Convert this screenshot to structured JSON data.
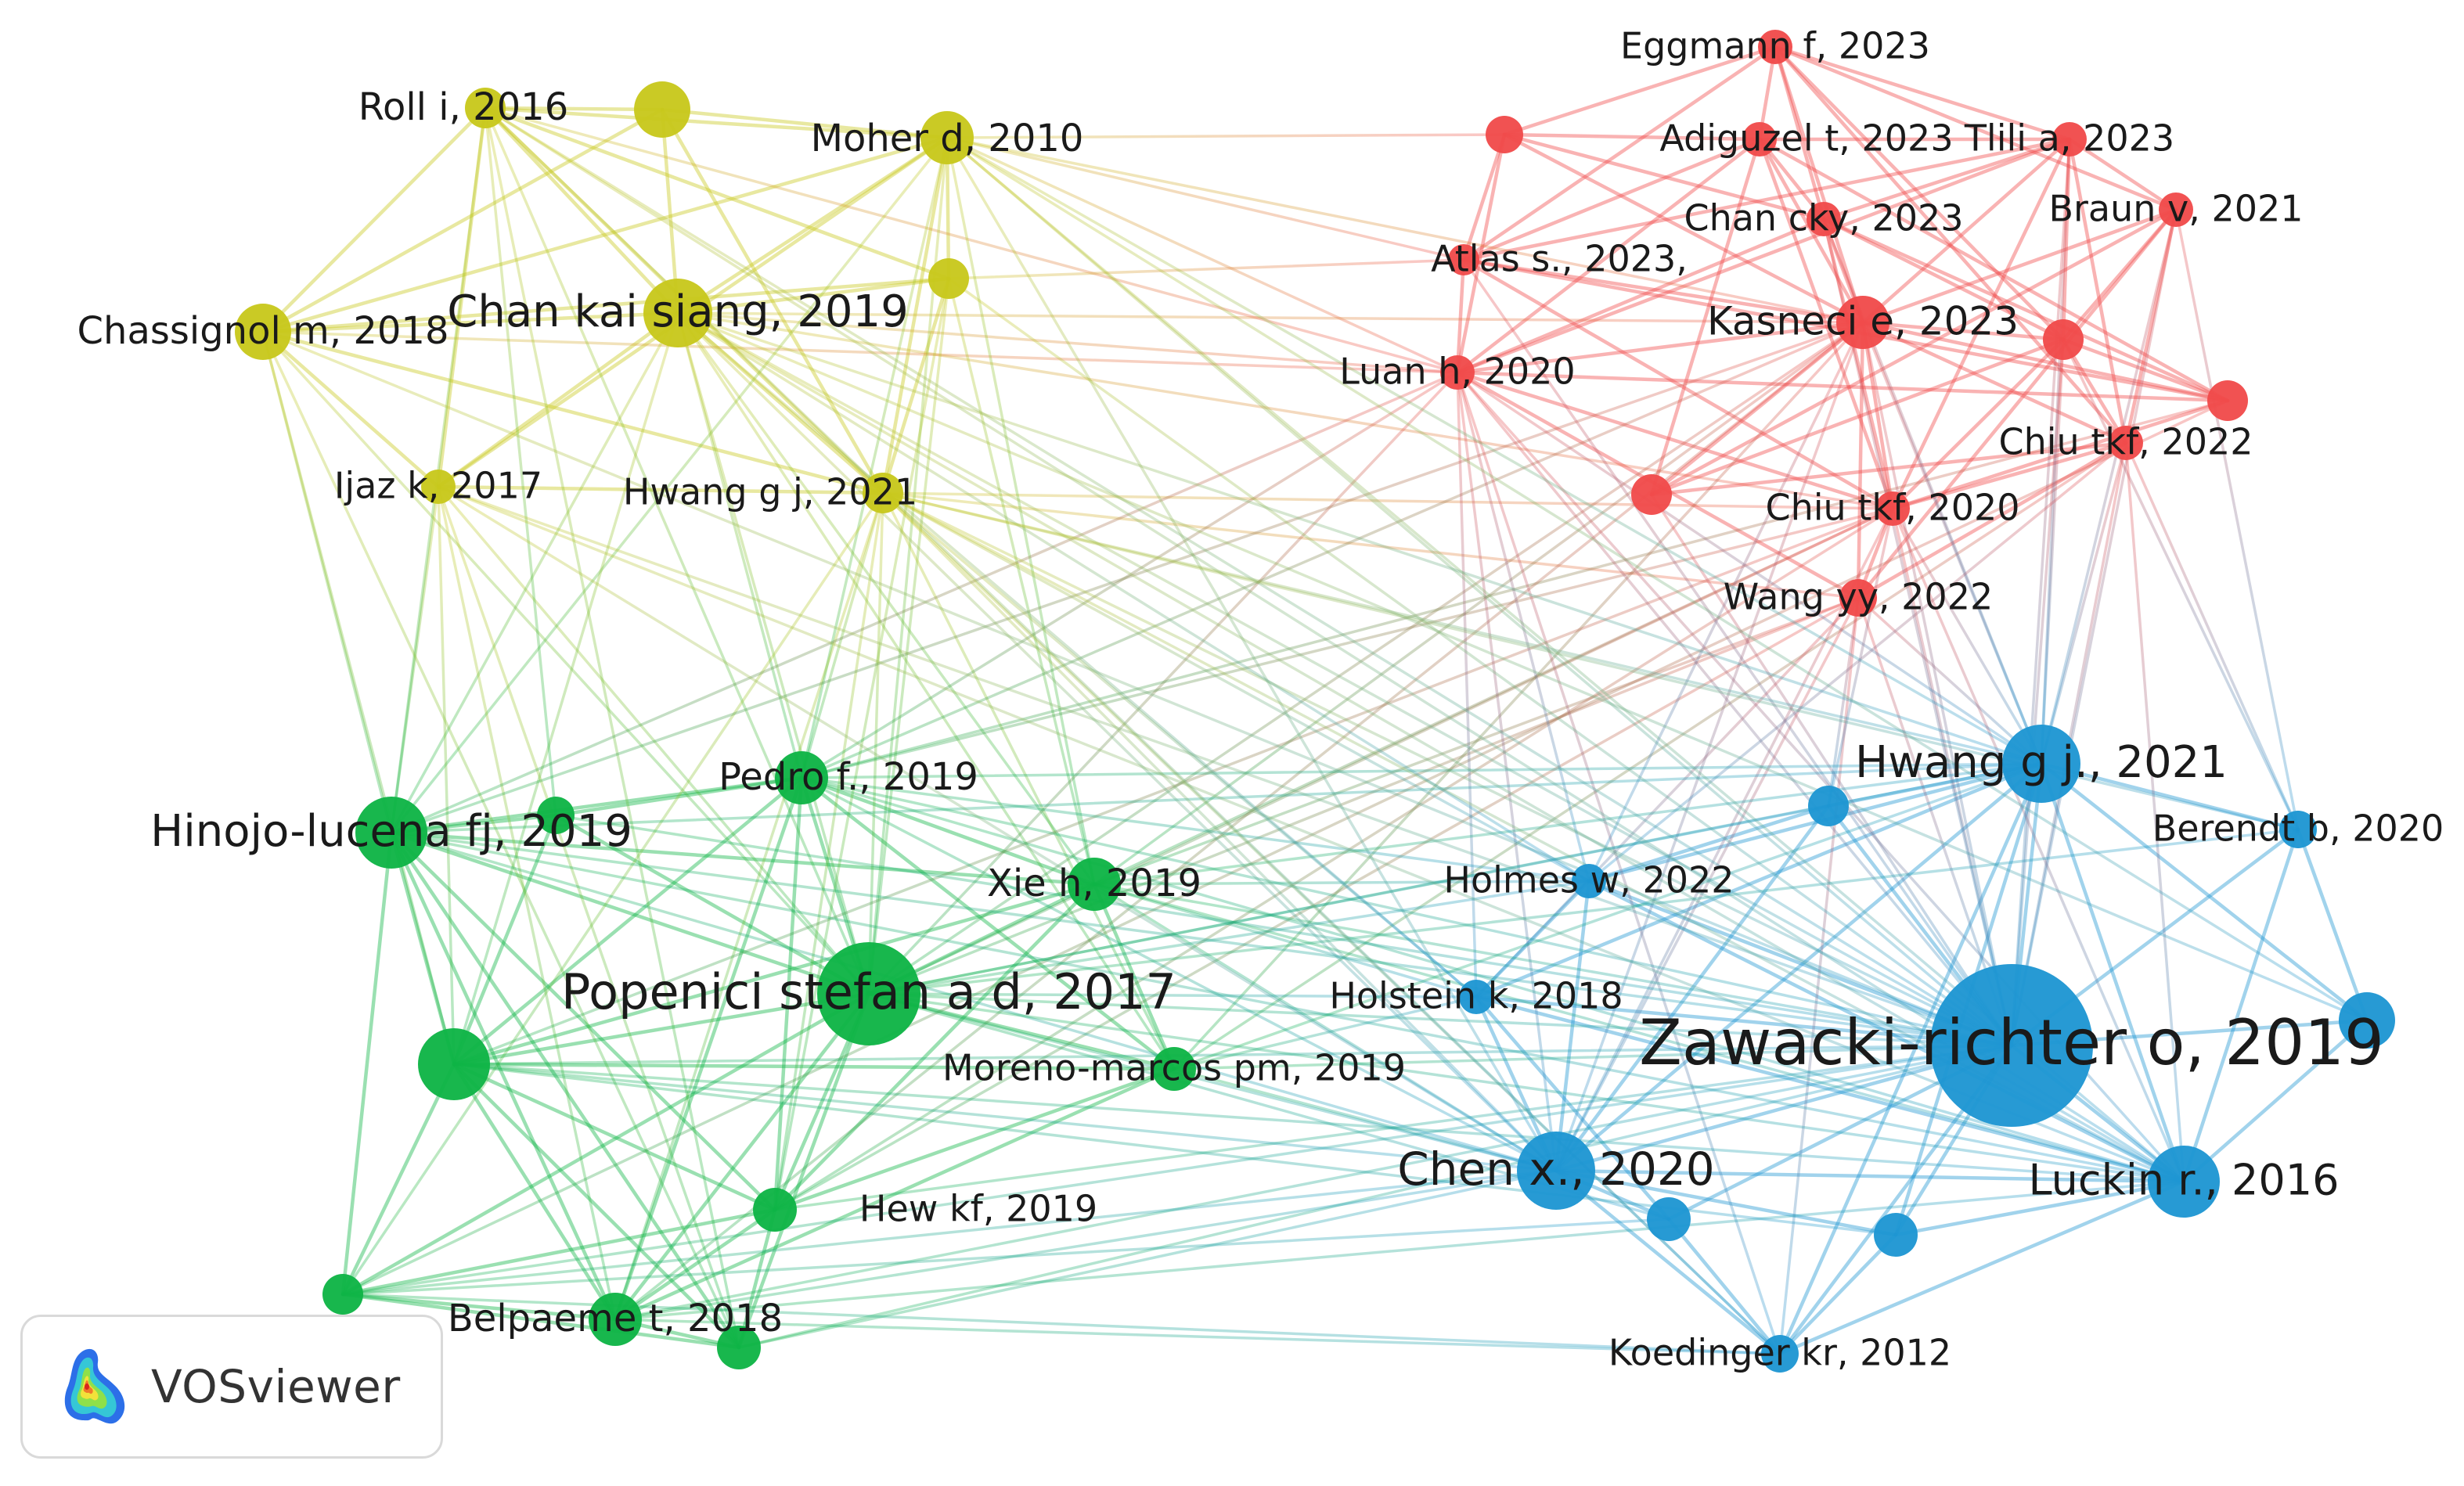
{
  "clusters": [
    {
      "id": "red",
      "color": "#f04b4b"
    },
    {
      "id": "yellow",
      "color": "#c8c81c"
    },
    {
      "id": "green",
      "color": "#0fb446"
    },
    {
      "id": "blue",
      "color": "#1e96d2"
    }
  ],
  "nodes": [
    {
      "id": "eggmann",
      "label": "Eggmann f, 2023",
      "cluster": "red"
    },
    {
      "id": "adiguzel",
      "label": "Adiguzel t, 2023",
      "cluster": "red"
    },
    {
      "id": "tlili",
      "label": "Tlili a, 2023",
      "cluster": "red"
    },
    {
      "id": "red_u1",
      "label": "",
      "cluster": "red"
    },
    {
      "id": "chancky",
      "label": "Chan cky, 2023",
      "cluster": "red"
    },
    {
      "id": "braun",
      "label": "Braun v, 2021",
      "cluster": "red"
    },
    {
      "id": "atlas",
      "label": "Atlas s., 2023,",
      "cluster": "red"
    },
    {
      "id": "kasneci",
      "label": "Kasneci e, 2023",
      "cluster": "red"
    },
    {
      "id": "red_u2",
      "label": "",
      "cluster": "red"
    },
    {
      "id": "luan",
      "label": "Luan h, 2020",
      "cluster": "red"
    },
    {
      "id": "red_u3",
      "label": "",
      "cluster": "red"
    },
    {
      "id": "chiu2022",
      "label": "Chiu tkf, 2022",
      "cluster": "red"
    },
    {
      "id": "red_u4",
      "label": "",
      "cluster": "red"
    },
    {
      "id": "chiu2020",
      "label": "Chiu tkf, 2020",
      "cluster": "red"
    },
    {
      "id": "wangyy",
      "label": "Wang yy, 2022",
      "cluster": "red"
    },
    {
      "id": "roll",
      "label": "Roll i, 2016",
      "cluster": "yellow"
    },
    {
      "id": "yel_u1",
      "label": "",
      "cluster": "yellow"
    },
    {
      "id": "moher",
      "label": "Moher d, 2010",
      "cluster": "yellow"
    },
    {
      "id": "yel_u2",
      "label": "",
      "cluster": "yellow"
    },
    {
      "id": "chankai",
      "label": "Chan kai siang, 2019",
      "cluster": "yellow"
    },
    {
      "id": "chassignol",
      "label": "Chassignol m, 2018",
      "cluster": "yellow"
    },
    {
      "id": "ijaz",
      "label": "Ijaz k, 2017",
      "cluster": "yellow"
    },
    {
      "id": "hwang_y",
      "label": "Hwang g j, 2021",
      "cluster": "yellow"
    },
    {
      "id": "pedro",
      "label": "Pedro f., 2019",
      "cluster": "green"
    },
    {
      "id": "hinojo",
      "label": "Hinojo-lucena fj, 2019",
      "cluster": "green"
    },
    {
      "id": "grn_u1",
      "label": "",
      "cluster": "green"
    },
    {
      "id": "xie",
      "label": "Xie h, 2019",
      "cluster": "green"
    },
    {
      "id": "popenici",
      "label": "Popenici stefan a d, 2017",
      "cluster": "green"
    },
    {
      "id": "grn_u2",
      "label": "",
      "cluster": "green"
    },
    {
      "id": "moreno",
      "label": "Moreno-marcos pm, 2019",
      "cluster": "green"
    },
    {
      "id": "hew",
      "label": "Hew kf, 2019",
      "cluster": "green"
    },
    {
      "id": "grn_u3",
      "label": "",
      "cluster": "green"
    },
    {
      "id": "belpaeme",
      "label": "Belpaeme t, 2018",
      "cluster": "green"
    },
    {
      "id": "grn_u4",
      "label": "",
      "cluster": "green"
    },
    {
      "id": "hwang_b",
      "label": "Hwang g j., 2021",
      "cluster": "blue"
    },
    {
      "id": "blu_u1",
      "label": "",
      "cluster": "blue"
    },
    {
      "id": "berendt",
      "label": "Berendt b, 2020",
      "cluster": "blue"
    },
    {
      "id": "holmes",
      "label": "Holmes w, 2022",
      "cluster": "blue"
    },
    {
      "id": "holstein",
      "label": "Holstein k, 2018",
      "cluster": "blue"
    },
    {
      "id": "blu_u2",
      "label": "",
      "cluster": "blue"
    },
    {
      "id": "zawacki",
      "label": "Zawacki-richter o, 2019",
      "cluster": "blue"
    },
    {
      "id": "chenx",
      "label": "Chen x., 2020",
      "cluster": "blue"
    },
    {
      "id": "blu_u3",
      "label": "",
      "cluster": "blue"
    },
    {
      "id": "blu_u4",
      "label": "",
      "cluster": "blue"
    },
    {
      "id": "luckin",
      "label": "Luckin r., 2016",
      "cluster": "blue"
    },
    {
      "id": "koedinger",
      "label": "Koedinger kr, 2012",
      "cluster": "blue"
    }
  ],
  "links": [
    [
      "eggmann",
      "adiguzel"
    ],
    [
      "eggmann",
      "tlili"
    ],
    [
      "eggmann",
      "chancky"
    ],
    [
      "eggmann",
      "kasneci"
    ],
    [
      "eggmann",
      "red_u1"
    ],
    [
      "eggmann",
      "atlas"
    ],
    [
      "eggmann",
      "braun"
    ],
    [
      "eggmann",
      "red_u2"
    ],
    [
      "eggmann",
      "chiu2022"
    ],
    [
      "adiguzel",
      "tlili"
    ],
    [
      "adiguzel",
      "red_u1"
    ],
    [
      "adiguzel",
      "chancky"
    ],
    [
      "adiguzel",
      "kasneci"
    ],
    [
      "adiguzel",
      "atlas"
    ],
    [
      "adiguzel",
      "luan"
    ],
    [
      "adiguzel",
      "chiu2020"
    ],
    [
      "adiguzel",
      "red_u3"
    ],
    [
      "adiguzel",
      "red_u4"
    ],
    [
      "tlili",
      "chancky"
    ],
    [
      "tlili",
      "kasneci"
    ],
    [
      "tlili",
      "braun"
    ],
    [
      "tlili",
      "red_u2"
    ],
    [
      "tlili",
      "chiu2022"
    ],
    [
      "tlili",
      "atlas"
    ],
    [
      "tlili",
      "luan"
    ],
    [
      "tlili",
      "chiu2020"
    ],
    [
      "red_u1",
      "kasneci"
    ],
    [
      "red_u1",
      "atlas"
    ],
    [
      "red_u1",
      "luan"
    ],
    [
      "red_u1",
      "chancky"
    ],
    [
      "chancky",
      "kasneci"
    ],
    [
      "chancky",
      "luan"
    ],
    [
      "chancky",
      "red_u3"
    ],
    [
      "chancky",
      "chiu2020"
    ],
    [
      "chancky",
      "red_u2"
    ],
    [
      "braun",
      "kasneci"
    ],
    [
      "braun",
      "red_u2"
    ],
    [
      "braun",
      "chiu2022"
    ],
    [
      "braun",
      "wangyy"
    ],
    [
      "braun",
      "red_u4"
    ],
    [
      "atlas",
      "kasneci"
    ],
    [
      "atlas",
      "luan"
    ],
    [
      "atlas",
      "red_u3"
    ],
    [
      "atlas",
      "chiu2020"
    ],
    [
      "kasneci",
      "red_u2"
    ],
    [
      "kasneci",
      "luan"
    ],
    [
      "kasneci",
      "chiu2022"
    ],
    [
      "kasneci",
      "chiu2020"
    ],
    [
      "kasneci",
      "red_u3"
    ],
    [
      "kasneci",
      "wangyy"
    ],
    [
      "kasneci",
      "red_u4"
    ],
    [
      "red_u2",
      "chiu2022"
    ],
    [
      "red_u2",
      "red_u4"
    ],
    [
      "red_u2",
      "chiu2020"
    ],
    [
      "red_u2",
      "red_u3"
    ],
    [
      "chiu2022",
      "red_u4"
    ],
    [
      "chiu2022",
      "chiu2020"
    ],
    [
      "chiu2022",
      "wangyy"
    ],
    [
      "luan",
      "red_u3"
    ],
    [
      "luan",
      "chiu2020"
    ],
    [
      "luan",
      "wangyy"
    ],
    [
      "chiu2020",
      "wangyy"
    ],
    [
      "chiu2020",
      "red_u3"
    ],
    [
      "roll",
      "yel_u1"
    ],
    [
      "roll",
      "moher"
    ],
    [
      "roll",
      "chankai"
    ],
    [
      "roll",
      "chassignol"
    ],
    [
      "roll",
      "ijaz"
    ],
    [
      "roll",
      "hwang_y"
    ],
    [
      "roll",
      "yel_u2"
    ],
    [
      "yel_u1",
      "chankai"
    ],
    [
      "yel_u1",
      "moher"
    ],
    [
      "yel_u1",
      "chassignol"
    ],
    [
      "yel_u1",
      "hwang_y"
    ],
    [
      "moher",
      "chankai"
    ],
    [
      "moher",
      "yel_u2"
    ],
    [
      "moher",
      "chassignol"
    ],
    [
      "moher",
      "hwang_y"
    ],
    [
      "moher",
      "ijaz"
    ],
    [
      "chankai",
      "chassignol"
    ],
    [
      "chankai",
      "yel_u2"
    ],
    [
      "chankai",
      "ijaz"
    ],
    [
      "chankai",
      "hwang_y"
    ],
    [
      "chassignol",
      "ijaz"
    ],
    [
      "chassignol",
      "hwang_y"
    ],
    [
      "chassignol",
      "yel_u2"
    ],
    [
      "ijaz",
      "hwang_y"
    ],
    [
      "yel_u2",
      "hwang_y"
    ],
    [
      "pedro",
      "hinojo"
    ],
    [
      "pedro",
      "grn_u1"
    ],
    [
      "pedro",
      "popenici"
    ],
    [
      "pedro",
      "xie"
    ],
    [
      "pedro",
      "grn_u2"
    ],
    [
      "pedro",
      "hew"
    ],
    [
      "pedro",
      "belpaeme"
    ],
    [
      "pedro",
      "moreno"
    ],
    [
      "hinojo",
      "grn_u1"
    ],
    [
      "hinojo",
      "grn_u2"
    ],
    [
      "hinojo",
      "popenici"
    ],
    [
      "hinojo",
      "grn_u4"
    ],
    [
      "hinojo",
      "belpaeme"
    ],
    [
      "hinojo",
      "hew"
    ],
    [
      "hinojo",
      "grn_u3"
    ],
    [
      "hinojo",
      "xie"
    ],
    [
      "grn_u1",
      "popenici"
    ],
    [
      "grn_u1",
      "grn_u2"
    ],
    [
      "xie",
      "popenici"
    ],
    [
      "xie",
      "moreno"
    ],
    [
      "xie",
      "hew"
    ],
    [
      "xie",
      "grn_u2"
    ],
    [
      "popenici",
      "grn_u2"
    ],
    [
      "popenici",
      "moreno"
    ],
    [
      "popenici",
      "hew"
    ],
    [
      "popenici",
      "belpaeme"
    ],
    [
      "popenici",
      "grn_u3"
    ],
    [
      "popenici",
      "grn_u4"
    ],
    [
      "grn_u2",
      "moreno"
    ],
    [
      "grn_u2",
      "hew"
    ],
    [
      "grn_u2",
      "grn_u4"
    ],
    [
      "grn_u2",
      "belpaeme"
    ],
    [
      "grn_u2",
      "grn_u3"
    ],
    [
      "moreno",
      "hew"
    ],
    [
      "moreno",
      "belpaeme"
    ],
    [
      "hew",
      "belpaeme"
    ],
    [
      "hew",
      "grn_u3"
    ],
    [
      "grn_u3",
      "belpaeme"
    ],
    [
      "grn_u4",
      "belpaeme"
    ],
    [
      "grn_u4",
      "grn_u3"
    ],
    [
      "grn_u4",
      "hew"
    ],
    [
      "hwang_b",
      "blu_u1"
    ],
    [
      "hwang_b",
      "berendt"
    ],
    [
      "hwang_b",
      "zawacki"
    ],
    [
      "hwang_b",
      "holmes"
    ],
    [
      "hwang_b",
      "luckin"
    ],
    [
      "hwang_b",
      "chenx"
    ],
    [
      "hwang_b",
      "blu_u4"
    ],
    [
      "hwang_b",
      "blu_u2"
    ],
    [
      "hwang_b",
      "koedinger"
    ],
    [
      "hwang_b",
      "holstein"
    ],
    [
      "blu_u1",
      "zawacki"
    ],
    [
      "blu_u1",
      "holmes"
    ],
    [
      "blu_u1",
      "chenx"
    ],
    [
      "berendt",
      "zawacki"
    ],
    [
      "berendt",
      "blu_u2"
    ],
    [
      "berendt",
      "luckin"
    ],
    [
      "holmes",
      "zawacki"
    ],
    [
      "holmes",
      "holstein"
    ],
    [
      "holmes",
      "chenx"
    ],
    [
      "holmes",
      "luckin"
    ],
    [
      "holstein",
      "zawacki"
    ],
    [
      "holstein",
      "chenx"
    ],
    [
      "holstein",
      "blu_u3"
    ],
    [
      "holstein",
      "luckin"
    ],
    [
      "blu_u2",
      "zawacki"
    ],
    [
      "blu_u2",
      "luckin"
    ],
    [
      "zawacki",
      "chenx"
    ],
    [
      "zawacki",
      "luckin"
    ],
    [
      "zawacki",
      "blu_u3"
    ],
    [
      "zawacki",
      "blu_u4"
    ],
    [
      "zawacki",
      "koedinger"
    ],
    [
      "chenx",
      "blu_u3"
    ],
    [
      "chenx",
      "blu_u4"
    ],
    [
      "chenx",
      "koedinger"
    ],
    [
      "chenx",
      "luckin"
    ],
    [
      "blu_u3",
      "koedinger"
    ],
    [
      "blu_u4",
      "koedinger"
    ],
    [
      "blu_u4",
      "luckin"
    ],
    [
      "luckin",
      "koedinger"
    ],
    [
      "moher",
      "kasneci"
    ],
    [
      "moher",
      "luan"
    ],
    [
      "moher",
      "atlas"
    ],
    [
      "moher",
      "red_u1"
    ],
    [
      "chankai",
      "luan"
    ],
    [
      "chankai",
      "chiu2020"
    ],
    [
      "chankai",
      "kasneci"
    ],
    [
      "roll",
      "luan"
    ],
    [
      "yel_u2",
      "atlas"
    ],
    [
      "hwang_y",
      "chiu2020"
    ],
    [
      "hwang_y",
      "wangyy"
    ],
    [
      "chassignol",
      "luan"
    ],
    [
      "popenici",
      "moher"
    ],
    [
      "popenici",
      "chankai"
    ],
    [
      "popenici",
      "roll"
    ],
    [
      "popenici",
      "chassignol"
    ],
    [
      "popenici",
      "ijaz"
    ],
    [
      "popenici",
      "hwang_y"
    ],
    [
      "popenici",
      "yel_u2"
    ],
    [
      "hinojo",
      "chassignol"
    ],
    [
      "hinojo",
      "chankai"
    ],
    [
      "hinojo",
      "ijaz"
    ],
    [
      "hinojo",
      "moher"
    ],
    [
      "hinojo",
      "roll"
    ],
    [
      "pedro",
      "moher"
    ],
    [
      "pedro",
      "chankai"
    ],
    [
      "pedro",
      "hwang_y"
    ],
    [
      "xie",
      "moher"
    ],
    [
      "xie",
      "chankai"
    ],
    [
      "xie",
      "yel_u2"
    ],
    [
      "grn_u2",
      "chassignol"
    ],
    [
      "grn_u2",
      "ijaz"
    ],
    [
      "grn_u2",
      "chankai"
    ],
    [
      "grn_u4",
      "ijaz"
    ],
    [
      "grn_u4",
      "chassignol"
    ],
    [
      "grn_u4",
      "roll"
    ],
    [
      "belpaeme",
      "ijaz"
    ],
    [
      "belpaeme",
      "hwang_y"
    ],
    [
      "hew",
      "hwang_y"
    ],
    [
      "hew",
      "yel_u2"
    ],
    [
      "moreno",
      "chankai"
    ],
    [
      "moreno",
      "hwang_y"
    ],
    [
      "grn_u3",
      "hwang_y"
    ],
    [
      "grn_u1",
      "roll"
    ],
    [
      "popenici",
      "luan"
    ],
    [
      "popenici",
      "kasneci"
    ],
    [
      "popenici",
      "chiu2020"
    ],
    [
      "popenici",
      "wangyy"
    ],
    [
      "pedro",
      "luan"
    ],
    [
      "pedro",
      "kasneci"
    ],
    [
      "pedro",
      "chiu2020"
    ],
    [
      "pedro",
      "red_u3"
    ],
    [
      "xie",
      "kasneci"
    ],
    [
      "xie",
      "chiu2020"
    ],
    [
      "xie",
      "wangyy"
    ],
    [
      "hinojo",
      "luan"
    ],
    [
      "hinojo",
      "kasneci"
    ],
    [
      "moreno",
      "kasneci"
    ],
    [
      "moreno",
      "chiu2022"
    ],
    [
      "hew",
      "chiu2020"
    ],
    [
      "hew",
      "wangyy"
    ],
    [
      "grn_u2",
      "chiu2020"
    ],
    [
      "belpaeme",
      "kasneci"
    ],
    [
      "grn_u3",
      "red_u3"
    ],
    [
      "zawacki",
      "kasneci"
    ],
    [
      "zawacki",
      "luan"
    ],
    [
      "zawacki",
      "chiu2020"
    ],
    [
      "zawacki",
      "chiu2022"
    ],
    [
      "zawacki",
      "wangyy"
    ],
    [
      "zawacki",
      "tlili"
    ],
    [
      "zawacki",
      "braun"
    ],
    [
      "zawacki",
      "red_u2"
    ],
    [
      "zawacki",
      "red_u4"
    ],
    [
      "zawacki",
      "chancky"
    ],
    [
      "zawacki",
      "atlas"
    ],
    [
      "hwang_b",
      "kasneci"
    ],
    [
      "hwang_b",
      "luan"
    ],
    [
      "hwang_b",
      "chiu2020"
    ],
    [
      "hwang_b",
      "chiu2022"
    ],
    [
      "hwang_b",
      "wangyy"
    ],
    [
      "hwang_b",
      "tlili"
    ],
    [
      "hwang_b",
      "braun"
    ],
    [
      "hwang_b",
      "red_u2"
    ],
    [
      "hwang_b",
      "chancky"
    ],
    [
      "chenx",
      "luan"
    ],
    [
      "chenx",
      "kasneci"
    ],
    [
      "chenx",
      "chiu2020"
    ],
    [
      "chenx",
      "wangyy"
    ],
    [
      "holmes",
      "luan"
    ],
    [
      "holmes",
      "chiu2022"
    ],
    [
      "holmes",
      "kasneci"
    ],
    [
      "berendt",
      "chiu2022"
    ],
    [
      "berendt",
      "braun"
    ],
    [
      "berendt",
      "red_u2"
    ],
    [
      "luckin",
      "chiu2022"
    ],
    [
      "luckin",
      "chiu2020"
    ],
    [
      "luckin",
      "luan"
    ],
    [
      "holstein",
      "luan"
    ],
    [
      "holstein",
      "wangyy"
    ],
    [
      "koedinger",
      "luan"
    ],
    [
      "koedinger",
      "wangyy"
    ],
    [
      "blu_u1",
      "chiu2020"
    ],
    [
      "blu_u1",
      "wangyy"
    ],
    [
      "zawacki",
      "popenici"
    ],
    [
      "zawacki",
      "hinojo"
    ],
    [
      "zawacki",
      "pedro"
    ],
    [
      "zawacki",
      "xie"
    ],
    [
      "zawacki",
      "grn_u2"
    ],
    [
      "zawacki",
      "moreno"
    ],
    [
      "zawacki",
      "hew"
    ],
    [
      "zawacki",
      "belpaeme"
    ],
    [
      "zawacki",
      "grn_u4"
    ],
    [
      "zawacki",
      "grn_u1"
    ],
    [
      "zawacki",
      "grn_u3"
    ],
    [
      "chenx",
      "popenici"
    ],
    [
      "chenx",
      "hinojo"
    ],
    [
      "chenx",
      "pedro"
    ],
    [
      "chenx",
      "xie"
    ],
    [
      "chenx",
      "moreno"
    ],
    [
      "chenx",
      "grn_u2"
    ],
    [
      "chenx",
      "belpaeme"
    ],
    [
      "chenx",
      "grn_u4"
    ],
    [
      "chenx",
      "grn_u3"
    ],
    [
      "luckin",
      "popenici"
    ],
    [
      "luckin",
      "hinojo"
    ],
    [
      "luckin",
      "grn_u2"
    ],
    [
      "luckin",
      "belpaeme"
    ],
    [
      "luckin",
      "pedro"
    ],
    [
      "luckin",
      "xie"
    ],
    [
      "holmes",
      "popenici"
    ],
    [
      "holmes",
      "pedro"
    ],
    [
      "holmes",
      "xie"
    ],
    [
      "holstein",
      "popenici"
    ],
    [
      "holstein",
      "moreno"
    ],
    [
      "holstein",
      "xie"
    ],
    [
      "hwang_b",
      "popenici"
    ],
    [
      "hwang_b",
      "pedro"
    ],
    [
      "hwang_b",
      "xie"
    ],
    [
      "hwang_b",
      "hinojo"
    ],
    [
      "hwang_b",
      "moreno"
    ],
    [
      "blu_u3",
      "popenici"
    ],
    [
      "blu_u4",
      "grn_u2"
    ],
    [
      "koedinger",
      "belpaeme"
    ],
    [
      "koedinger",
      "grn_u3"
    ],
    [
      "blu_u3",
      "grn_u3"
    ],
    [
      "berendt",
      "popenici"
    ],
    [
      "blu_u1",
      "popenici"
    ],
    [
      "zawacki",
      "chankai"
    ],
    [
      "zawacki",
      "moher"
    ],
    [
      "zawacki",
      "hwang_y"
    ],
    [
      "zawacki",
      "ijaz"
    ],
    [
      "zawacki",
      "chassignol"
    ],
    [
      "zawacki",
      "roll"
    ],
    [
      "zawacki",
      "yel_u2"
    ],
    [
      "chenx",
      "hwang_y"
    ],
    [
      "chenx",
      "chankai"
    ],
    [
      "chenx",
      "ijaz"
    ],
    [
      "chenx",
      "moher"
    ],
    [
      "luckin",
      "chankai"
    ],
    [
      "luckin",
      "roll"
    ],
    [
      "luckin",
      "hwang_y"
    ],
    [
      "luckin",
      "ijaz"
    ],
    [
      "luckin",
      "moher"
    ],
    [
      "holstein",
      "chankai"
    ],
    [
      "holstein",
      "hwang_y"
    ],
    [
      "hwang_b",
      "chankai"
    ],
    [
      "hwang_b",
      "hwang_y"
    ],
    [
      "hwang_b",
      "moher"
    ],
    [
      "koedinger",
      "roll"
    ],
    [
      "koedinger",
      "hwang_y"
    ],
    [
      "holmes",
      "hwang_y"
    ],
    [
      "holmes",
      "chankai"
    ],
    [
      "berendt",
      "hwang_y"
    ],
    [
      "blu_u2",
      "moher"
    ],
    [
      "blu_u2",
      "chankai"
    ]
  ],
  "badge": {
    "text": "VOSviewer",
    "logo_icon": "vosviewer-density-logo-icon"
  }
}
